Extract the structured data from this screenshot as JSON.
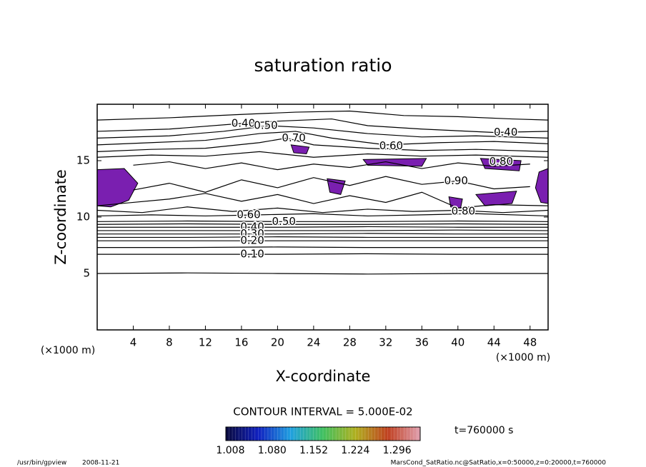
{
  "chart_data": {
    "type": "contour",
    "title": "saturation ratio",
    "xlabel": "X-coordinate",
    "ylabel": "Z-coordinate",
    "x_unit": "(×1000 m)",
    "y_unit": "(×1000 m)",
    "xlim": [
      0,
      50
    ],
    "ylim": [
      0,
      20
    ],
    "xticks": [
      4,
      8,
      12,
      16,
      20,
      24,
      28,
      32,
      36,
      40,
      44,
      48
    ],
    "yticks": [
      5,
      10,
      15
    ],
    "line_color": "#000000",
    "contour_interval_label": "CONTOUR INTERVAL = 5.000E-02",
    "time_label": "t=760000 s",
    "contours": [
      {
        "level": 0.05,
        "x": [
          0,
          10,
          20,
          30,
          40,
          50
        ],
        "z": [
          5.0,
          5.05,
          5.0,
          4.95,
          5.0,
          5.0
        ]
      },
      {
        "level": 0.1,
        "x": [
          0,
          10,
          20,
          30,
          40,
          50
        ],
        "z": [
          6.7,
          6.7,
          6.7,
          6.75,
          6.7,
          6.7
        ]
      },
      {
        "level": 0.15,
        "x": [
          0,
          10,
          20,
          30,
          40,
          50
        ],
        "z": [
          7.3,
          7.3,
          7.35,
          7.3,
          7.3,
          7.3
        ]
      },
      {
        "level": 0.2,
        "x": [
          0,
          10,
          20,
          30,
          40,
          50
        ],
        "z": [
          7.9,
          7.9,
          7.9,
          7.9,
          7.9,
          7.9
        ]
      },
      {
        "level": 0.25,
        "x": [
          0,
          10,
          20,
          30,
          40,
          50
        ],
        "z": [
          8.2,
          8.2,
          8.25,
          8.2,
          8.2,
          8.2
        ]
      },
      {
        "level": 0.3,
        "x": [
          0,
          10,
          20,
          30,
          40,
          50
        ],
        "z": [
          8.5,
          8.5,
          8.5,
          8.55,
          8.5,
          8.5
        ]
      },
      {
        "level": 0.35,
        "x": [
          0,
          10,
          20,
          30,
          40,
          50
        ],
        "z": [
          8.8,
          8.8,
          8.8,
          8.8,
          8.85,
          8.8
        ]
      },
      {
        "level": 0.4,
        "x": [
          0,
          10,
          20,
          30,
          40,
          50
        ],
        "z": [
          9.1,
          9.1,
          9.1,
          9.15,
          9.1,
          9.1
        ]
      },
      {
        "level": 0.45,
        "x": [
          0,
          10,
          20,
          30,
          40,
          50
        ],
        "z": [
          9.35,
          9.4,
          9.35,
          9.35,
          9.4,
          9.35
        ]
      },
      {
        "level": 0.5,
        "x": [
          0,
          10,
          20,
          30,
          40,
          50
        ],
        "z": [
          9.6,
          9.65,
          9.6,
          9.6,
          9.65,
          9.6
        ]
      },
      {
        "level": 0.6,
        "x": [
          0,
          6,
          12,
          18,
          24,
          30,
          36,
          42,
          50
        ],
        "z": [
          10.1,
          10.2,
          10.1,
          10.2,
          10.3,
          10.1,
          10.2,
          10.3,
          10.1
        ]
      },
      {
        "level": 0.7,
        "x": [
          0,
          5,
          10,
          15,
          20,
          25,
          30,
          35,
          40,
          45,
          50
        ],
        "z": [
          10.6,
          10.4,
          10.9,
          10.5,
          10.8,
          10.4,
          10.7,
          10.5,
          10.6,
          10.4,
          10.6
        ]
      },
      {
        "level": 0.8,
        "x": [
          0,
          4,
          8,
          12,
          16,
          20,
          24,
          28,
          32,
          36,
          40,
          44,
          50
        ],
        "z": [
          11.0,
          11.3,
          11.6,
          12.1,
          11.4,
          12.0,
          11.2,
          11.9,
          11.3,
          12.2,
          10.8,
          11.1,
          11.0
        ]
      },
      {
        "level": 0.9,
        "x": [
          4,
          8,
          12,
          16,
          20,
          24,
          28,
          32,
          36,
          40,
          44,
          48
        ],
        "z": [
          12.4,
          13.0,
          12.2,
          13.3,
          12.6,
          13.5,
          12.8,
          13.6,
          12.9,
          13.2,
          12.5,
          12.7
        ]
      },
      {
        "level": 0.9,
        "x": [
          4,
          8,
          12,
          16,
          20,
          24,
          28,
          32,
          36,
          40,
          44,
          48
        ],
        "z": [
          14.6,
          14.9,
          14.3,
          14.8,
          14.2,
          14.7,
          14.4,
          14.9,
          14.3,
          14.8,
          14.5,
          14.7
        ]
      },
      {
        "level": 0.8,
        "x": [
          0,
          6,
          12,
          18,
          24,
          30,
          36,
          42,
          50
        ],
        "z": [
          15.3,
          15.5,
          15.4,
          15.8,
          15.3,
          15.6,
          15.4,
          15.5,
          15.3
        ]
      },
      {
        "level": 0.7,
        "x": [
          0,
          6,
          12,
          18,
          21,
          24,
          30,
          36,
          42,
          50
        ],
        "z": [
          15.8,
          16.0,
          16.1,
          16.6,
          17.0,
          16.4,
          16.1,
          15.9,
          16.0,
          15.8
        ]
      },
      {
        "level": 0.6,
        "x": [
          0,
          6,
          12,
          18,
          22,
          26,
          32,
          38,
          44,
          50
        ],
        "z": [
          16.4,
          16.6,
          16.8,
          17.4,
          17.6,
          17.0,
          16.4,
          16.6,
          16.7,
          16.5
        ]
      },
      {
        "level": 0.5,
        "x": [
          0,
          8,
          14,
          19,
          24,
          30,
          36,
          42,
          50
        ],
        "z": [
          17.0,
          17.2,
          17.6,
          18.1,
          17.9,
          17.4,
          17.1,
          17.2,
          17.0
        ]
      },
      {
        "level": 0.4,
        "x": [
          0,
          8,
          16,
          20,
          26,
          30,
          36,
          44,
          50
        ],
        "z": [
          17.6,
          17.8,
          18.3,
          18.5,
          18.7,
          18.1,
          17.8,
          17.5,
          17.6
        ]
      },
      {
        "level": 0.3,
        "x": [
          0,
          8,
          16,
          22,
          28,
          34,
          40,
          46,
          50
        ],
        "z": [
          18.6,
          18.8,
          19.1,
          19.3,
          19.4,
          19.0,
          18.9,
          18.7,
          18.6
        ]
      }
    ],
    "contour_labels": [
      {
        "value": 0.4,
        "label": "0.40",
        "x": 16.2,
        "z": 18.3
      },
      {
        "value": 0.5,
        "label": "0.50",
        "x": 18.7,
        "z": 18.1
      },
      {
        "value": 0.7,
        "label": "0.70",
        "x": 21.8,
        "z": 17.0
      },
      {
        "value": 0.6,
        "label": "0.60",
        "x": 32.6,
        "z": 16.3
      },
      {
        "value": 0.4,
        "label": "0.40",
        "x": 45.3,
        "z": 17.5
      },
      {
        "value": 0.8,
        "label": "0.80",
        "x": 44.8,
        "z": 14.9
      },
      {
        "value": 0.9,
        "label": "0.90",
        "x": 39.8,
        "z": 13.2
      },
      {
        "value": 0.8,
        "label": "0.80",
        "x": 40.6,
        "z": 10.5
      },
      {
        "value": 0.6,
        "label": "0.60",
        "x": 16.8,
        "z": 10.2
      },
      {
        "value": 0.5,
        "label": "0.50",
        "x": 20.7,
        "z": 9.6
      },
      {
        "value": 0.4,
        "label": "0.40",
        "x": 17.2,
        "z": 9.1
      },
      {
        "value": 0.3,
        "label": "0.30",
        "x": 17.2,
        "z": 8.5
      },
      {
        "value": 0.2,
        "label": "0.20",
        "x": 17.2,
        "z": 7.9
      },
      {
        "value": 0.1,
        "label": "0.10",
        "x": 17.2,
        "z": 6.7
      }
    ],
    "filled_regions": [
      {
        "value": 1.02,
        "x": [
          0,
          3.0,
          4.5,
          3.5,
          1.5,
          0
        ],
        "z": [
          14.2,
          14.3,
          13.0,
          11.5,
          10.9,
          11.0
        ]
      },
      {
        "value": 1.02,
        "x": [
          49.0,
          50,
          50,
          49.2,
          48.6
        ],
        "z": [
          14.0,
          14.3,
          11.2,
          11.3,
          12.6
        ]
      },
      {
        "value": 1.02,
        "x": [
          42.5,
          47.0,
          46.8,
          43.0
        ],
        "z": [
          15.2,
          15.0,
          14.1,
          14.3
        ]
      },
      {
        "value": 1.02,
        "x": [
          42.0,
          46.5,
          46.0,
          43.0
        ],
        "z": [
          12.0,
          12.3,
          11.2,
          11.0
        ]
      },
      {
        "value": 1.02,
        "x": [
          21.5,
          23.5,
          23.2,
          21.8
        ],
        "z": [
          16.4,
          16.2,
          15.6,
          15.7
        ]
      },
      {
        "value": 1.02,
        "x": [
          29.5,
          36.5,
          36.0,
          30.0
        ],
        "z": [
          15.1,
          15.2,
          14.5,
          14.6
        ]
      },
      {
        "value": 1.02,
        "x": [
          25.5,
          27.5,
          27.0,
          25.8
        ],
        "z": [
          13.4,
          13.2,
          12.0,
          12.2
        ]
      },
      {
        "value": 1.02,
        "x": [
          39.0,
          40.5,
          40.3,
          39.2
        ],
        "z": [
          11.8,
          11.6,
          10.8,
          10.9
        ]
      }
    ],
    "colorbar": {
      "lim": [
        1.0,
        1.336
      ],
      "ticks": [
        1.008,
        {
          "value": 1.08,
          "label": "1.080"
        },
        1.152,
        1.224,
        1.296
      ],
      "colors": [
        "#0a0a3c",
        "#1020c0",
        "#20a0e0",
        "#40c060",
        "#b0b020",
        "#c04020",
        "#e0a0b0"
      ]
    }
  },
  "footer": {
    "program": "/usr/bin/gpview",
    "date": "2008-11-21",
    "source": "MarsCond_SatRatio.nc@SatRatio,x=0:50000,z=0:20000,t=760000"
  }
}
